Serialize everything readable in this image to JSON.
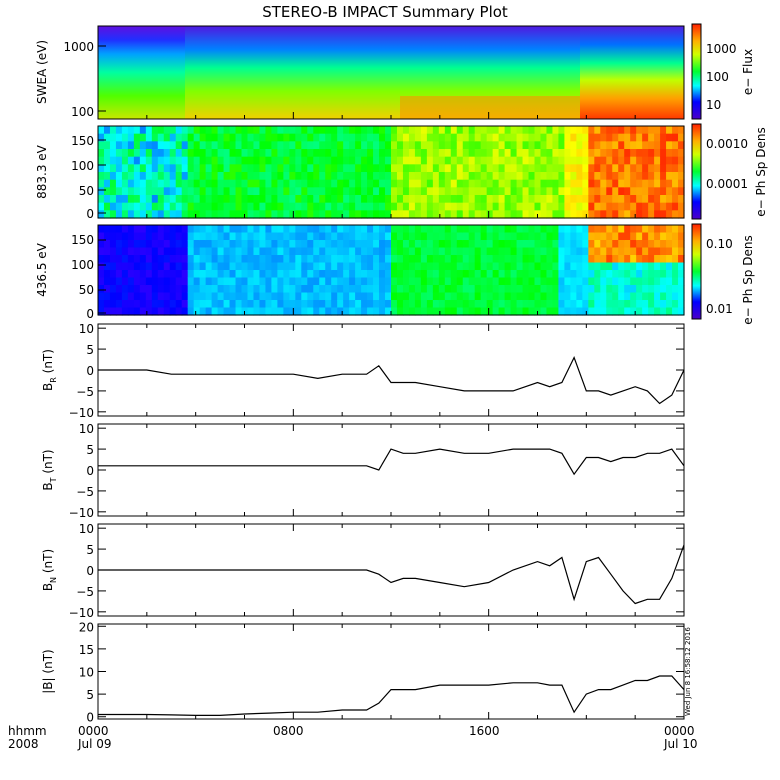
{
  "chart_data": {
    "type": "line",
    "title": "STEREO-B IMPACT Summary Plot",
    "panels": [
      {
        "id": "swea",
        "kind": "spectrogram",
        "ylabel": "SWEA (eV)",
        "ytick_labels": [
          "1000",
          "100"
        ],
        "colorbar_label": "e− Flux",
        "colorbar_ticks": [
          "1000",
          "100",
          "10"
        ]
      },
      {
        "id": "pad883",
        "kind": "spectrogram",
        "ylabel": "883.3 eV",
        "ytick_labels": [
          "150",
          "100",
          "50",
          "0"
        ],
        "ylim": [
          0,
          180
        ],
        "colorbar_label": "e− Ph Sp Dens",
        "colorbar_ticks": [
          "0.0010",
          "0.0001"
        ]
      },
      {
        "id": "pad436",
        "kind": "spectrogram",
        "ylabel": "436.5 eV",
        "ytick_labels": [
          "150",
          "100",
          "50",
          "0"
        ],
        "ylim": [
          0,
          180
        ],
        "colorbar_label": "e− Ph Sp Dens",
        "colorbar_ticks": [
          "0.10",
          "0.01"
        ]
      }
    ],
    "x_hours": [
      0,
      1,
      2,
      3,
      4,
      5,
      6,
      7,
      8,
      9,
      10,
      11,
      11.5,
      12,
      12.5,
      13,
      14,
      15,
      16,
      17,
      18,
      18.5,
      19,
      19.5,
      20,
      20.5,
      21,
      21.5,
      22,
      22.5,
      23,
      23.5,
      24
    ],
    "series": [
      {
        "name": "B_R",
        "ylabel_main": "B",
        "ylabel_sub": "R",
        "ylabel_unit": " (nT)",
        "ylim": [
          -11,
          11
        ],
        "ytick_labels": [
          "10",
          "5",
          "0",
          "−5",
          "−10"
        ],
        "values": [
          0,
          0,
          0,
          -1,
          -1,
          -1,
          -1,
          -1,
          -1,
          -2,
          -1,
          -1,
          1,
          -3,
          -3,
          -3,
          -4,
          -5,
          -5,
          -5,
          -3,
          -4,
          -3,
          3,
          -5,
          -5,
          -6,
          -5,
          -4,
          -5,
          -8,
          -6,
          0
        ]
      },
      {
        "name": "B_T",
        "ylabel_main": "B",
        "ylabel_sub": "T",
        "ylabel_unit": " (nT)",
        "ylim": [
          -11,
          11
        ],
        "ytick_labels": [
          "10",
          "5",
          "0",
          "−5",
          "−10"
        ],
        "values": [
          1,
          1,
          1,
          1,
          1,
          1,
          1,
          1,
          1,
          1,
          1,
          1,
          0,
          5,
          4,
          4,
          5,
          4,
          4,
          5,
          5,
          5,
          4,
          -1,
          3,
          3,
          2,
          3,
          3,
          4,
          4,
          5,
          1
        ]
      },
      {
        "name": "B_N",
        "ylabel_main": "B",
        "ylabel_sub": "N",
        "ylabel_unit": " (nT)",
        "ylim": [
          -11,
          11
        ],
        "ytick_labels": [
          "10",
          "5",
          "0",
          "−5",
          "−10"
        ],
        "values": [
          0,
          0,
          0,
          0,
          0,
          0,
          0,
          0,
          0,
          0,
          0,
          0,
          -1,
          -3,
          -2,
          -2,
          -3,
          -4,
          -3,
          0,
          2,
          1,
          3,
          -7,
          2,
          3,
          -1,
          -5,
          -8,
          -7,
          -7,
          -2,
          6
        ]
      },
      {
        "name": "|B|",
        "ylabel_main": "|B|",
        "ylabel_sub": "",
        "ylabel_unit": " (nT)",
        "ylim": [
          -0.5,
          20.5
        ],
        "ytick_labels": [
          "20",
          "15",
          "10",
          "5",
          "0"
        ],
        "values": [
          0.5,
          0.5,
          0.5,
          0.4,
          0.3,
          0.3,
          0.6,
          0.8,
          1,
          1,
          1.5,
          1.5,
          3,
          6,
          6,
          6,
          7,
          7,
          7,
          7.5,
          7.5,
          7,
          7,
          1,
          5,
          6,
          6,
          7,
          8,
          8,
          9,
          9,
          6
        ]
      }
    ],
    "x_tick_labels": [
      {
        "hh": "0000",
        "day": "Jul 09"
      },
      {
        "hh": "0800",
        "day": ""
      },
      {
        "hh": "1600",
        "day": ""
      },
      {
        "hh": "0000",
        "day": "Jul 10"
      }
    ],
    "x_label_lines": [
      "hhmm",
      "2008"
    ],
    "stamp": "Wed Jun  8 16:58:12 2016"
  }
}
